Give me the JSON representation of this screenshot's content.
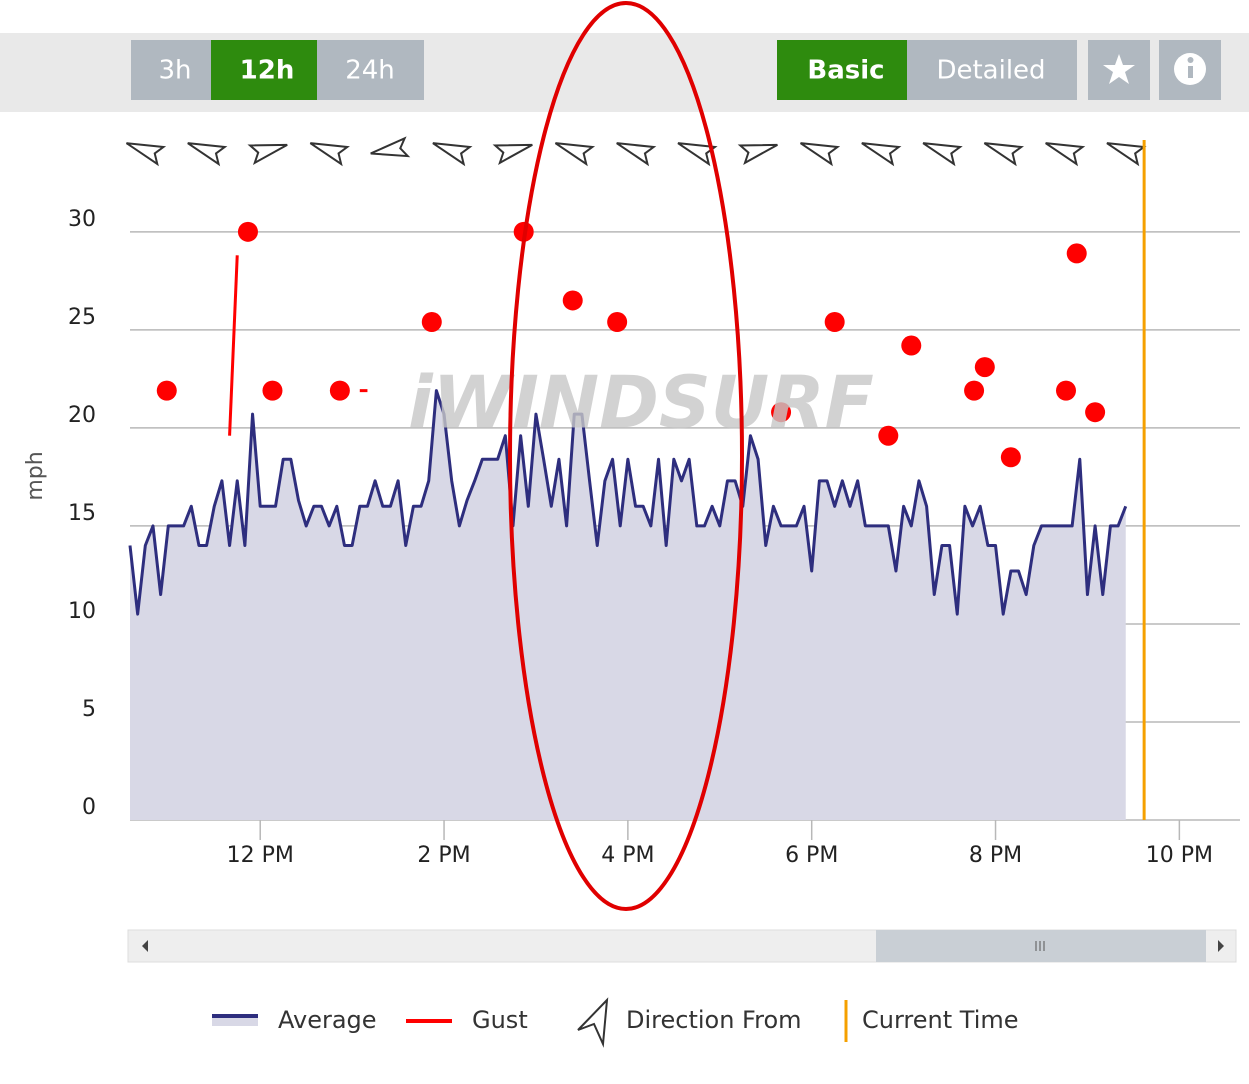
{
  "toolbar": {
    "ranges": [
      "3h",
      "12h",
      "24h"
    ],
    "modes": [
      "Basic",
      "Detailed"
    ]
  },
  "chart_data": {
    "type": "line",
    "watermark": "iWINDSURF",
    "y_label": "mph",
    "xlim": [
      635,
      1340
    ],
    "ylim": [
      0,
      33
    ],
    "xticks": [
      {
        "value": 720,
        "label": "12 PM"
      },
      {
        "value": 840,
        "label": "2 PM"
      },
      {
        "value": 960,
        "label": "4 PM"
      },
      {
        "value": 1080,
        "label": "6 PM"
      },
      {
        "value": 1200,
        "label": "8 PM"
      },
      {
        "value": 1320,
        "label": "10 PM"
      }
    ],
    "yticks": [
      0,
      5,
      10,
      15,
      20,
      25,
      30
    ],
    "grid": true,
    "fill_color": "#d8d8e6",
    "series": [
      {
        "name": "Average",
        "color": "#2e2e7e",
        "x": [
          635,
          640,
          645,
          650,
          655,
          660,
          665,
          670,
          675,
          680,
          685,
          690,
          695,
          700,
          705,
          710,
          715,
          720,
          725,
          730,
          735,
          740,
          745,
          750,
          755,
          760,
          765,
          770,
          775,
          780,
          785,
          790,
          795,
          800,
          805,
          810,
          815,
          820,
          825,
          830,
          835,
          840,
          845,
          850,
          855,
          860,
          865,
          870,
          875,
          880,
          885,
          890,
          895,
          900,
          905,
          910,
          915,
          920,
          925,
          930,
          935,
          940,
          945,
          950,
          955,
          960,
          965,
          970,
          975,
          980,
          985,
          990,
          995,
          1000,
          1005,
          1010,
          1015,
          1020,
          1025,
          1030,
          1035,
          1040,
          1045,
          1050,
          1055,
          1060,
          1065,
          1070,
          1075,
          1080,
          1085,
          1090,
          1095,
          1100,
          1105,
          1110,
          1115,
          1120,
          1125,
          1130,
          1135,
          1140,
          1145,
          1150,
          1155,
          1160,
          1165,
          1170,
          1175,
          1180,
          1185,
          1190,
          1195,
          1200,
          1205,
          1210,
          1215,
          1220,
          1225,
          1230,
          1235,
          1240,
          1245,
          1250,
          1255,
          1260,
          1265,
          1270,
          1275,
          1280,
          1285
        ],
        "values": [
          14,
          10.5,
          14,
          15,
          11.5,
          15,
          15,
          15,
          16,
          14,
          14,
          16,
          17.3,
          14,
          17.3,
          14,
          20.7,
          16,
          16,
          16,
          18.4,
          18.4,
          16.3,
          15,
          16,
          16,
          15,
          16,
          14,
          14,
          16,
          16,
          17.3,
          16,
          16,
          17.3,
          14,
          16,
          16,
          17.3,
          21.9,
          20.7,
          17.3,
          15,
          16.3,
          17.3,
          18.4,
          18.4,
          18.4,
          19.6,
          15,
          19.6,
          16,
          20.7,
          18.4,
          16,
          18.4,
          15,
          20.7,
          20.7,
          17.3,
          14,
          17.3,
          18.4,
          15,
          18.4,
          16,
          16,
          15,
          18.4,
          14,
          18.4,
          17.3,
          18.4,
          15,
          15,
          16,
          15,
          17.3,
          17.3,
          16,
          19.6,
          18.4,
          14,
          16,
          15,
          15,
          15,
          16,
          12.7,
          17.3,
          17.3,
          16,
          17.3,
          16,
          17.3,
          15,
          15,
          15,
          15,
          12.7,
          16,
          15,
          17.3,
          16,
          11.5,
          14,
          14,
          10.5,
          16,
          15,
          16,
          14,
          14,
          10.5,
          12.7,
          12.7,
          11.5,
          14,
          15,
          15,
          15,
          15,
          15,
          18.4,
          11.5,
          15,
          11.5,
          15,
          15,
          16
        ]
      },
      {
        "name": "Gust",
        "color": "#ff0000",
        "x": [
          659,
          null,
          700,
          705,
          null,
          712,
          null,
          728,
          null,
          772,
          null,
          785,
          790,
          null,
          832,
          null,
          892,
          null,
          924,
          null,
          953,
          null,
          1060,
          null,
          1095,
          null,
          1130,
          null,
          1145,
          null,
          1186,
          null,
          1193,
          null,
          1210,
          null,
          1246,
          null,
          1253,
          null,
          1265
        ],
        "values": [
          21.9,
          null,
          19.6,
          28.8,
          null,
          30,
          null,
          21.9,
          null,
          21.9,
          null,
          21.9,
          21.9,
          null,
          25.4,
          null,
          30,
          null,
          26.5,
          null,
          25.4,
          null,
          20.8,
          null,
          25.4,
          null,
          19.6,
          null,
          24.2,
          null,
          21.9,
          null,
          23.1,
          null,
          18.5,
          null,
          21.9,
          null,
          28.9,
          null,
          20.8
        ]
      }
    ],
    "direction_label": "Direction From",
    "direction_x": [
      645,
      685,
      725,
      765,
      805,
      845,
      885,
      925,
      965,
      1005,
      1045,
      1085,
      1125,
      1165,
      1205,
      1245,
      1285
    ],
    "direction_from": [
      200,
      200,
      345,
      200,
      170,
      200,
      345,
      200,
      200,
      200,
      345,
      200,
      200,
      200,
      200,
      200,
      200
    ],
    "current_time_label": "Current Time",
    "current_time": 1297,
    "current_time_color": "#f5a000"
  }
}
